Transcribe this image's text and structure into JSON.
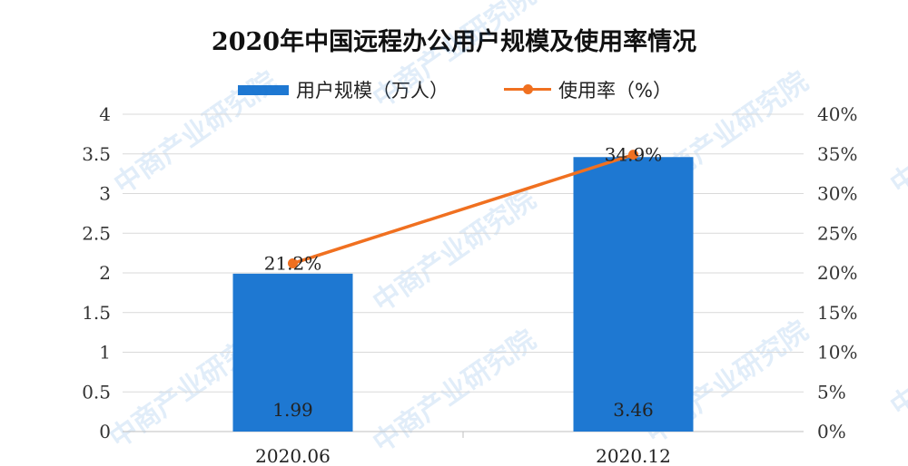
{
  "chart_data": {
    "type": "bar",
    "title": "2020年中国远程办公用户规模及使用率情况",
    "categories": [
      "2020.06",
      "2020.12"
    ],
    "series": [
      {
        "name": "用户规模（万人）",
        "type": "bar",
        "axis": "left",
        "values": [
          1.99,
          3.46
        ],
        "labels": [
          "1.99",
          "3.46"
        ],
        "color": "#1E78D2"
      },
      {
        "name": "使用率（%）",
        "type": "line",
        "axis": "right",
        "values": [
          21.2,
          34.9
        ],
        "labels": [
          "21.2%",
          "34.9%"
        ],
        "color": "#F07020"
      }
    ],
    "y_left": {
      "ylim": [
        0,
        4
      ],
      "ticks": [
        "0",
        "0.5",
        "1",
        "1.5",
        "2",
        "2.5",
        "3",
        "3.5",
        "4"
      ]
    },
    "y_right": {
      "ylim": [
        0,
        40
      ],
      "ticks": [
        "0%",
        "5%",
        "10%",
        "15%",
        "20%",
        "25%",
        "30%",
        "35%",
        "40%"
      ]
    },
    "grid": true,
    "legend_position": "top-center"
  },
  "watermark": {
    "text": "中商产业研究院"
  }
}
